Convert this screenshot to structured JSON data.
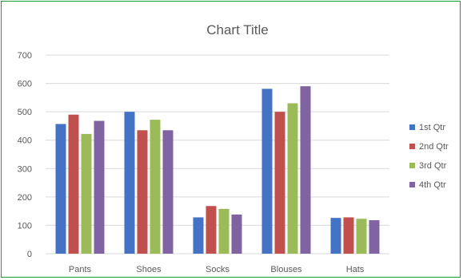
{
  "chart_data": {
    "type": "bar",
    "title": "Chart Title",
    "xlabel": "",
    "ylabel": "",
    "categories": [
      "Pants",
      "Shoes",
      "Socks",
      "Blouses",
      "Hats"
    ],
    "series": [
      {
        "name": "1st Qtr",
        "color": "#4472c4",
        "values": [
          457,
          500,
          128,
          581,
          126
        ]
      },
      {
        "name": "2nd Qtr",
        "color": "#c0504d",
        "values": [
          490,
          435,
          168,
          500,
          128
        ]
      },
      {
        "name": "3rd Qtr",
        "color": "#9bbb59",
        "values": [
          422,
          472,
          158,
          530,
          123
        ]
      },
      {
        "name": "4th Qtr",
        "color": "#8064a2",
        "values": [
          468,
          435,
          138,
          590,
          118
        ]
      }
    ],
    "ylim": [
      0,
      700
    ],
    "yticks": [
      0,
      100,
      200,
      300,
      400,
      500,
      600,
      700
    ],
    "grid": true,
    "legend": "right",
    "colors": {
      "frame_border": "#1a9a3a",
      "gridline": "#d9d9d9",
      "axis_text": "#595959"
    }
  }
}
